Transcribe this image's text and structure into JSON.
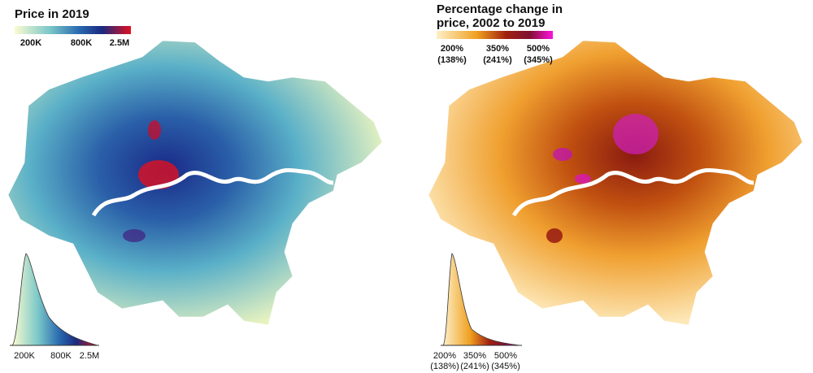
{
  "left_map": {
    "title": "Price in 2019",
    "legend": {
      "labels": [
        "200K",
        "800K",
        "2.5M"
      ]
    },
    "histogram": {
      "labels": [
        "200K",
        "800K",
        "2.5M"
      ]
    }
  },
  "right_map": {
    "title_lines": [
      "Percentage change in",
      "price, 2002 to 2019"
    ],
    "legend": {
      "labels": [
        [
          "200%",
          "(138%)"
        ],
        [
          "350%",
          "(241%)"
        ],
        [
          "500%",
          "(345%)"
        ]
      ]
    },
    "histogram": {
      "labels": [
        [
          "200%",
          "(138%)"
        ],
        [
          "350%",
          "(241%)"
        ],
        [
          "500%",
          "(345%)"
        ]
      ]
    }
  }
}
